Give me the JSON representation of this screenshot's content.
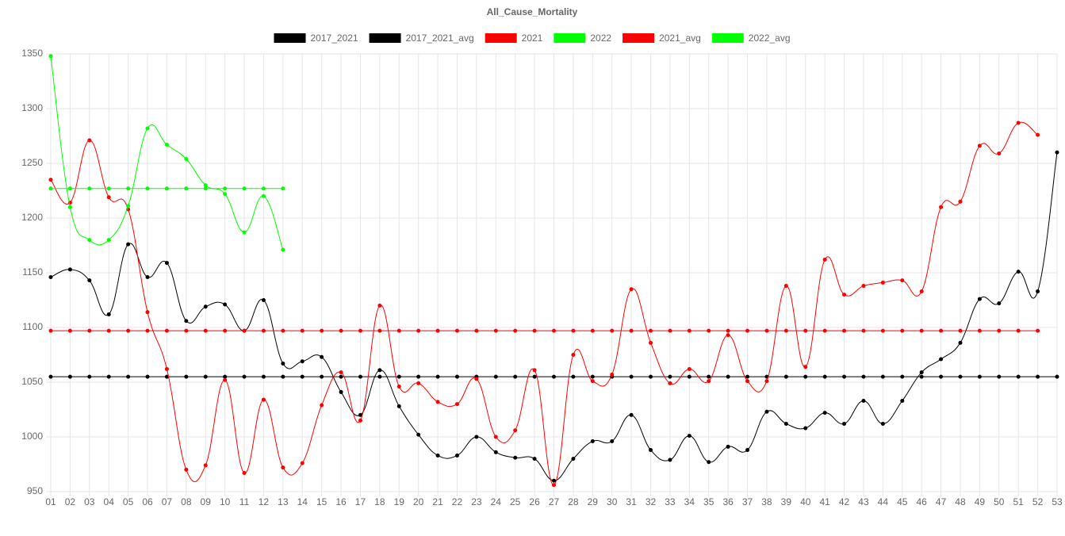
{
  "chart_data": {
    "type": "line",
    "title": "All_Cause_Mortality",
    "categories": [
      "01",
      "02",
      "03",
      "04",
      "05",
      "06",
      "07",
      "08",
      "09",
      "10",
      "11",
      "12",
      "13",
      "14",
      "15",
      "16",
      "17",
      "18",
      "19",
      "20",
      "21",
      "22",
      "23",
      "24",
      "25",
      "26",
      "27",
      "28",
      "29",
      "30",
      "31",
      "32",
      "33",
      "34",
      "35",
      "36",
      "37",
      "38",
      "39",
      "40",
      "41",
      "42",
      "43",
      "44",
      "45",
      "46",
      "47",
      "48",
      "49",
      "50",
      "51",
      "52",
      "53"
    ],
    "series": [
      {
        "name": "2017_2021",
        "color": "#000000",
        "values": [
          1146,
          1153,
          1143,
          1112,
          1176,
          1146,
          1159,
          1106,
          1119,
          1121,
          1097,
          1125,
          1067,
          1069,
          1073,
          1041,
          1020,
          1061,
          1028,
          1002,
          983,
          983,
          1000,
          986,
          981,
          980,
          960,
          980,
          996,
          996,
          1020,
          988,
          979,
          1001,
          977,
          991,
          988,
          1023,
          1012,
          1008,
          1022,
          1012,
          1033,
          1012,
          1033,
          1059,
          1071,
          1086,
          1126,
          1122,
          1151,
          1133,
          1260
        ]
      },
      {
        "name": "2017_2021_avg",
        "color": "#000000",
        "values": [
          1055,
          1055,
          1055,
          1055,
          1055,
          1055,
          1055,
          1055,
          1055,
          1055,
          1055,
          1055,
          1055,
          1055,
          1055,
          1055,
          1055,
          1055,
          1055,
          1055,
          1055,
          1055,
          1055,
          1055,
          1055,
          1055,
          1055,
          1055,
          1055,
          1055,
          1055,
          1055,
          1055,
          1055,
          1055,
          1055,
          1055,
          1055,
          1055,
          1055,
          1055,
          1055,
          1055,
          1055,
          1055,
          1055,
          1055,
          1055,
          1055,
          1055,
          1055,
          1055,
          1055
        ]
      },
      {
        "name": "2021",
        "color": "#ff0000",
        "values": [
          1235,
          1214,
          1271,
          1219,
          1208,
          1114,
          1062,
          970,
          974,
          1052,
          967,
          1034,
          972,
          976,
          1029,
          1059,
          1015,
          1120,
          1046,
          1049,
          1032,
          1030,
          1053,
          1000,
          1006,
          1061,
          956,
          1075,
          1051,
          1057,
          1135,
          1086,
          1049,
          1062,
          1051,
          1093,
          1051,
          1051,
          1138,
          1064,
          1162,
          1130,
          1138,
          1141,
          1143,
          1133,
          1210,
          1215,
          1266,
          1259,
          1287,
          1276,
          null
        ]
      },
      {
        "name": "2022",
        "color": "#00ff00",
        "values": [
          1348,
          1210,
          1180,
          1180,
          1211,
          1282,
          1267,
          1254,
          1230,
          1222,
          1187,
          1220,
          1171,
          null,
          null,
          null,
          null,
          null,
          null,
          null,
          null,
          null,
          null,
          null,
          null,
          null,
          null,
          null,
          null,
          null,
          null,
          null,
          null,
          null,
          null,
          null,
          null,
          null,
          null,
          null,
          null,
          null,
          null,
          null,
          null,
          null,
          null,
          null,
          null,
          null,
          null,
          null,
          null
        ]
      },
      {
        "name": "2021_avg",
        "color": "#ff0000",
        "values": [
          1097,
          1097,
          1097,
          1097,
          1097,
          1097,
          1097,
          1097,
          1097,
          1097,
          1097,
          1097,
          1097,
          1097,
          1097,
          1097,
          1097,
          1097,
          1097,
          1097,
          1097,
          1097,
          1097,
          1097,
          1097,
          1097,
          1097,
          1097,
          1097,
          1097,
          1097,
          1097,
          1097,
          1097,
          1097,
          1097,
          1097,
          1097,
          1097,
          1097,
          1097,
          1097,
          1097,
          1097,
          1097,
          1097,
          1097,
          1097,
          1097,
          1097,
          1097,
          1097,
          null
        ]
      },
      {
        "name": "2022_avg",
        "color": "#00ff00",
        "values": [
          1227,
          1227,
          1227,
          1227,
          1227,
          1227,
          1227,
          1227,
          1227,
          1227,
          1227,
          1227,
          1227,
          null,
          null,
          null,
          null,
          null,
          null,
          null,
          null,
          null,
          null,
          null,
          null,
          null,
          null,
          null,
          null,
          null,
          null,
          null,
          null,
          null,
          null,
          null,
          null,
          null,
          null,
          null,
          null,
          null,
          null,
          null,
          null,
          null,
          null,
          null,
          null,
          null,
          null,
          null,
          null
        ]
      }
    ],
    "ylim": [
      950,
      1350
    ],
    "yticks": [
      950,
      1000,
      1050,
      1100,
      1150,
      1200,
      1250,
      1300,
      1350
    ],
    "grid": true
  }
}
